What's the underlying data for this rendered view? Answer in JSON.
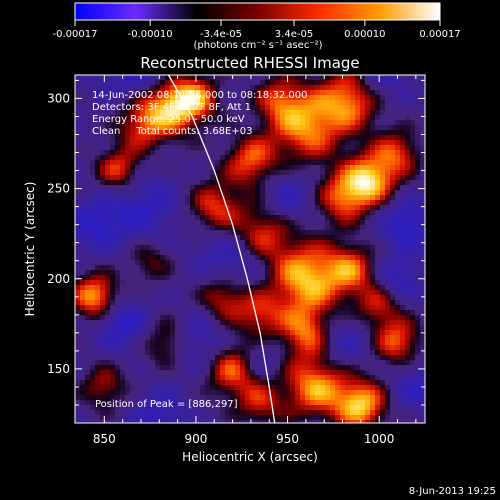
{
  "colorbar": {
    "tick_labels": [
      "-0.00017",
      "-0.00010",
      "-3.4e-05",
      "3.4e-05",
      "0.00010",
      "0.00017"
    ],
    "ticks": [
      -0.00017,
      -0.0001,
      -3.4e-05,
      3.4e-05,
      0.0001,
      0.00017
    ],
    "range": [
      -0.00017,
      0.00017
    ],
    "unit_label": "(photons cm⁻² s⁻¹ asec⁻²)",
    "colors": [
      "#0000ff",
      "#6a2cff",
      "#000000",
      "#7a0000",
      "#ff2a00",
      "#ff9a00",
      "#ffffff"
    ]
  },
  "chart_data": {
    "type": "heatmap",
    "title": "Reconstructed RHESSI Image",
    "xlabel": "Heliocentric X (arcsec)",
    "ylabel": "Heliocentric Y (arcsec)",
    "xlim": [
      834,
      1025
    ],
    "ylim": [
      120,
      313
    ],
    "x_ticks": [
      850,
      900,
      950,
      1000
    ],
    "y_ticks": [
      150,
      200,
      250,
      300
    ],
    "x_tick_labels": [
      "850",
      "900",
      "950",
      "1000"
    ],
    "y_tick_labels": [
      "150",
      "200",
      "250",
      "300"
    ],
    "annotations": [
      "14-Jun-2002 08:14:56.000 to 08:18:32.000",
      "Detectors: 3F 4F 6F 7F 8F, Att 1",
      "Energy Range: 25.0 - 50.0 keV",
      "Clean     Total counts: 3.68E+03"
    ],
    "peak_label": "Position of Peak = [886,297]",
    "peak": [
      886,
      297
    ],
    "limb_curve": [
      [
        885,
        313
      ],
      [
        898,
        290
      ],
      [
        910,
        260
      ],
      [
        920,
        230
      ],
      [
        928,
        200
      ],
      [
        935,
        170
      ],
      [
        940,
        140
      ],
      [
        943,
        120
      ]
    ],
    "blobs": [
      [
        886,
        297,
        0.95,
        12
      ],
      [
        870,
        285,
        0.55,
        10
      ],
      [
        985,
        300,
        0.8,
        12
      ],
      [
        960,
        285,
        0.85,
        14
      ],
      [
        995,
        255,
        0.95,
        10
      ],
      [
        980,
        245,
        0.7,
        10
      ],
      [
        1010,
        270,
        0.6,
        9
      ],
      [
        930,
        265,
        0.7,
        10
      ],
      [
        945,
        300,
        0.5,
        9
      ],
      [
        900,
        300,
        0.6,
        9
      ],
      [
        858,
        260,
        0.7,
        9
      ],
      [
        910,
        240,
        0.65,
        10
      ],
      [
        935,
        225,
        0.7,
        12
      ],
      [
        960,
        200,
        0.95,
        14
      ],
      [
        985,
        205,
        0.65,
        10
      ],
      [
        915,
        190,
        0.7,
        10
      ],
      [
        935,
        180,
        0.55,
        9
      ],
      [
        845,
        190,
        0.9,
        9
      ],
      [
        875,
        210,
        0.4,
        9
      ],
      [
        885,
        165,
        0.6,
        10
      ],
      [
        920,
        150,
        0.75,
        11
      ],
      [
        935,
        130,
        0.5,
        9
      ],
      [
        965,
        140,
        0.85,
        12
      ],
      [
        990,
        130,
        0.95,
        10
      ],
      [
        1010,
        165,
        0.7,
        9
      ],
      [
        850,
        140,
        0.5,
        9
      ],
      [
        1000,
        185,
        0.55,
        9
      ],
      [
        960,
        170,
        0.7,
        10
      ]
    ],
    "neg_blobs": [
      [
        870,
        320,
        -0.6,
        15
      ],
      [
        920,
        210,
        -0.5,
        14
      ],
      [
        870,
        240,
        -0.45,
        14
      ],
      [
        1015,
        230,
        -0.55,
        10
      ],
      [
        900,
        165,
        -0.5,
        12
      ],
      [
        860,
        175,
        -0.55,
        10
      ],
      [
        950,
        245,
        -0.4,
        10
      ],
      [
        1000,
        310,
        -0.4,
        10
      ],
      [
        845,
        230,
        -0.45,
        10
      ],
      [
        980,
        165,
        -0.35,
        10
      ],
      [
        1020,
        140,
        -0.4,
        9
      ],
      [
        880,
        125,
        -0.4,
        10
      ],
      [
        935,
        155,
        -0.35,
        8
      ],
      [
        1010,
        200,
        -0.45,
        9
      ]
    ]
  },
  "footer": {
    "date": "8-Jun-2013 19:25"
  }
}
